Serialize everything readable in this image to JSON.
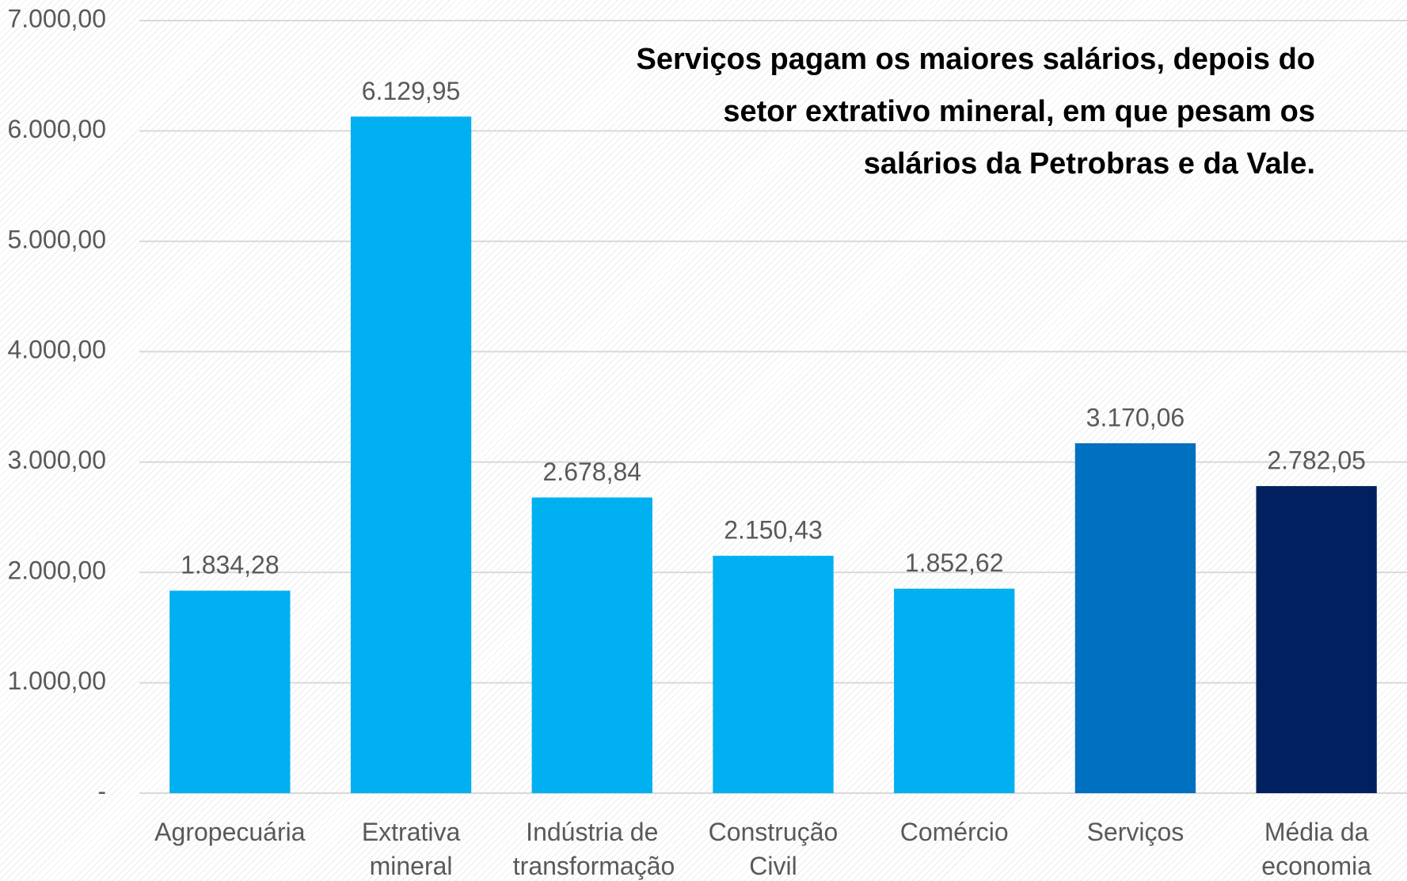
{
  "chart_data": {
    "type": "bar",
    "title": "Serviços pagam os maiores salários, depois do setor extrativo mineral, em que pesam os salários da Petrobras e da Vale.",
    "categories": [
      "Agropecuária",
      "Extrativa mineral",
      "Indústria de transformação",
      "Construção Civil",
      "Comércio",
      "Serviços",
      "Média da economia"
    ],
    "values": [
      1834.28,
      6129.95,
      2678.84,
      2150.43,
      1852.62,
      3170.06,
      2782.05
    ],
    "value_labels": [
      "1.834,28",
      "6.129,95",
      "2.678,84",
      "2.150,43",
      "1.852,62",
      "3.170,06",
      "2.782,05"
    ],
    "colors": [
      "#00b0f0",
      "#00b0f0",
      "#00b0f0",
      "#00b0f0",
      "#00b0f0",
      "#0070c0",
      "#002060"
    ],
    "ylim": [
      0,
      7000
    ],
    "yticks": [
      {
        "value": 0,
        "label": "-"
      },
      {
        "value": 1000,
        "label": "1.000,00"
      },
      {
        "value": 2000,
        "label": "2.000,00"
      },
      {
        "value": 3000,
        "label": "3.000,00"
      },
      {
        "value": 4000,
        "label": "4.000,00"
      },
      {
        "value": 5000,
        "label": "5.000,00"
      },
      {
        "value": 6000,
        "label": "6.000,00"
      },
      {
        "value": 7000,
        "label": "7.000,00"
      }
    ],
    "grid": true
  }
}
